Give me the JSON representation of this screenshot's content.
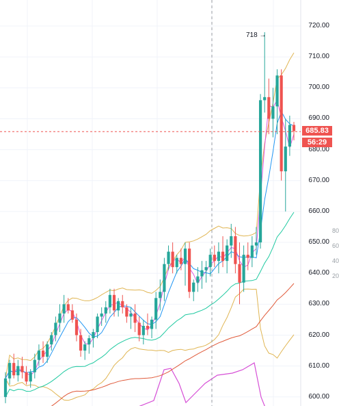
{
  "price_axis": {
    "labels": [
      "720.00",
      "710.00",
      "700.00",
      "690.00",
      "680.00",
      "670.00",
      "660.00",
      "650.00",
      "640.00",
      "630.00",
      "620.00",
      "610.00",
      "600.00"
    ],
    "values": [
      720,
      710,
      700,
      690,
      680,
      670,
      660,
      650,
      640,
      630,
      620,
      610,
      600
    ]
  },
  "last_price": {
    "label": "685.83",
    "value": 685.83,
    "countdown": "56:29"
  },
  "peak_marker": {
    "label": "718",
    "value": 718
  },
  "oscillator_axis": {
    "labels": [
      "80",
      "60",
      "40",
      "20"
    ]
  },
  "colors": {
    "up": "#26a69a",
    "down": "#ef5350",
    "bollinger": "#e0b552",
    "ma_fast": "#e056e0",
    "ma_mid": "#2196f3",
    "ma_slow": "#1ec9a0",
    "ma_long": "#e05a3a",
    "oscillator": "#d64fd6",
    "last_price_tag": "#ef5350"
  },
  "chart_data": {
    "type": "candlestick",
    "ohlc": [
      [
        600,
        608,
        598,
        606
      ],
      [
        606,
        612,
        604,
        611
      ],
      [
        611,
        614,
        606,
        607
      ],
      [
        607,
        612,
        605,
        610
      ],
      [
        610,
        613,
        606,
        608
      ],
      [
        608,
        610,
        604,
        605
      ],
      [
        605,
        609,
        603,
        608
      ],
      [
        608,
        614,
        606,
        612
      ],
      [
        612,
        617,
        610,
        615
      ],
      [
        615,
        618,
        611,
        613
      ],
      [
        613,
        618,
        611,
        617
      ],
      [
        617,
        621,
        615,
        620
      ],
      [
        620,
        626,
        618,
        624
      ],
      [
        624,
        630,
        621,
        627
      ],
      [
        627,
        633,
        624,
        630
      ],
      [
        630,
        632,
        627,
        628
      ],
      [
        628,
        630,
        624,
        625
      ],
      [
        625,
        627,
        618,
        620
      ],
      [
        620,
        622,
        613,
        615
      ],
      [
        615,
        618,
        612,
        617
      ],
      [
        617,
        620,
        614,
        619
      ],
      [
        619,
        622,
        616,
        621
      ],
      [
        621,
        627,
        619,
        626
      ],
      [
        626,
        629,
        623,
        627
      ],
      [
        627,
        631,
        624,
        629
      ],
      [
        629,
        635,
        627,
        633
      ],
      [
        633,
        635,
        626,
        628
      ],
      [
        628,
        632,
        626,
        631
      ],
      [
        631,
        633,
        627,
        629
      ],
      [
        629,
        630,
        624,
        626
      ],
      [
        626,
        629,
        622,
        627
      ],
      [
        627,
        630,
        621,
        624
      ],
      [
        624,
        626,
        618,
        620
      ],
      [
        620,
        625,
        617,
        623
      ],
      [
        623,
        627,
        620,
        622
      ],
      [
        622,
        626,
        619,
        625
      ],
      [
        625,
        634,
        622,
        632
      ],
      [
        632,
        638,
        628,
        634
      ],
      [
        634,
        645,
        631,
        643
      ],
      [
        643,
        649,
        641,
        647
      ],
      [
        647,
        650,
        640,
        642
      ],
      [
        642,
        646,
        640,
        645
      ],
      [
        645,
        648,
        641,
        643
      ],
      [
        643,
        650,
        636,
        648
      ],
      [
        648,
        650,
        632,
        634
      ],
      [
        634,
        638,
        631,
        637
      ],
      [
        637,
        642,
        634,
        639
      ],
      [
        639,
        644,
        635,
        641
      ],
      [
        641,
        644,
        637,
        642
      ],
      [
        642,
        648,
        639,
        646
      ],
      [
        646,
        649,
        642,
        644
      ],
      [
        644,
        650,
        640,
        647
      ],
      [
        647,
        652,
        642,
        644
      ],
      [
        644,
        651,
        640,
        649
      ],
      [
        649,
        656,
        645,
        652
      ],
      [
        652,
        655,
        640,
        643
      ],
      [
        643,
        650,
        630,
        637
      ],
      [
        637,
        649,
        634,
        646
      ],
      [
        646,
        650,
        641,
        645
      ],
      [
        645,
        652,
        642,
        649
      ],
      [
        649,
        655,
        646,
        650
      ],
      [
        650,
        698,
        648,
        696
      ],
      [
        696,
        718,
        692,
        697
      ],
      [
        697,
        703,
        685,
        690
      ],
      [
        690,
        700,
        684,
        694
      ],
      [
        694,
        706,
        685,
        704
      ],
      [
        704,
        706,
        670,
        673
      ],
      [
        673,
        690,
        660,
        681
      ],
      [
        681,
        691,
        678,
        688
      ],
      [
        688,
        689,
        683,
        686
      ]
    ]
  }
}
